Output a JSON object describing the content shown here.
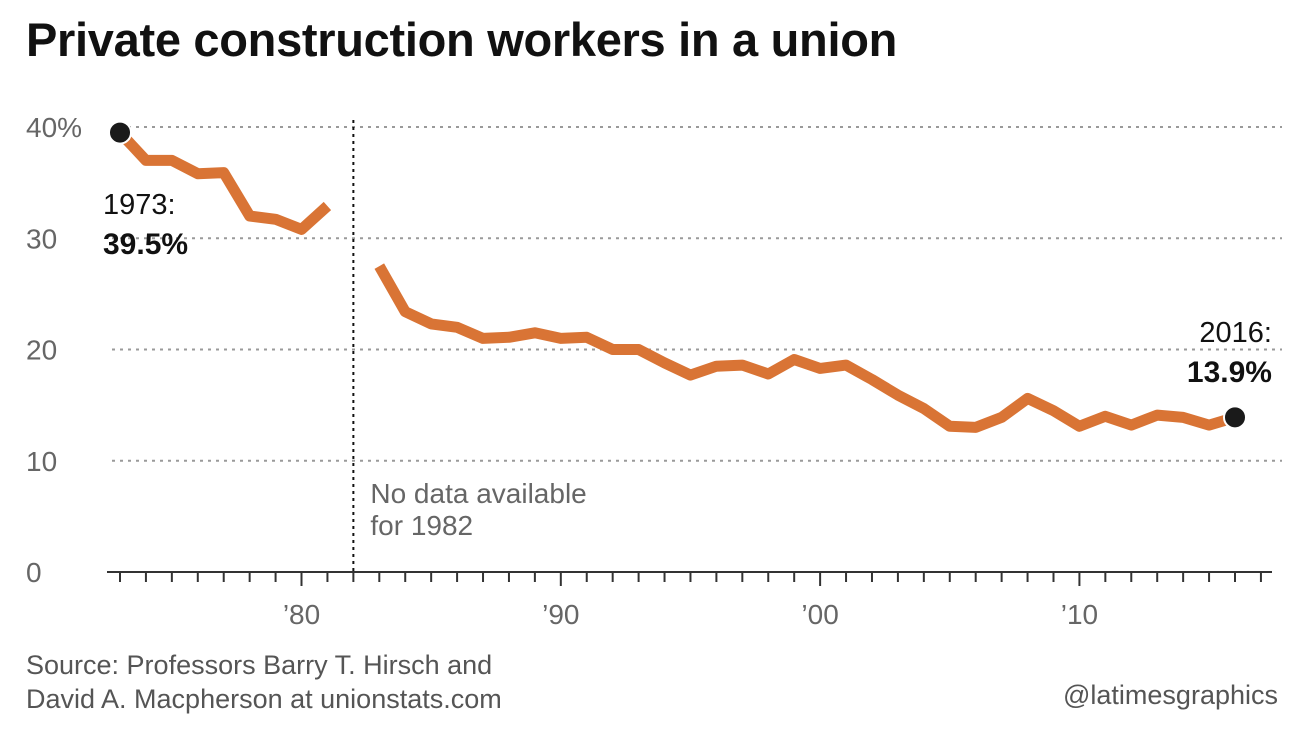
{
  "chart_data": {
    "type": "line",
    "title": "Private construction workers in a union",
    "xlabel": "",
    "ylabel": "",
    "ylim": [
      0,
      40
    ],
    "xlim": [
      1973,
      2017
    ],
    "yticks": [
      {
        "value": 40,
        "label": "40%"
      },
      {
        "value": 30,
        "label": "30"
      },
      {
        "value": 20,
        "label": "20"
      },
      {
        "value": 10,
        "label": "10"
      },
      {
        "value": 0,
        "label": "0"
      }
    ],
    "xticks": [
      {
        "value": 1980,
        "label": "’80"
      },
      {
        "value": 1990,
        "label": "’90"
      },
      {
        "value": 2000,
        "label": "’00"
      },
      {
        "value": 2010,
        "label": "’10"
      }
    ],
    "grid": true,
    "line_color": "#d97435",
    "marker_color": "#1a1a1a",
    "segments": [
      {
        "x": [
          1973,
          1974,
          1975,
          1976,
          1977,
          1978,
          1979,
          1980,
          1981
        ],
        "y": [
          39.5,
          37.0,
          37.0,
          35.8,
          35.9,
          32.0,
          31.7,
          30.8,
          32.9
        ]
      },
      {
        "x": [
          1983,
          1984,
          1985,
          1986,
          1987,
          1988,
          1989,
          1990,
          1991,
          1992,
          1993,
          1994,
          1995,
          1996,
          1997,
          1998,
          1999,
          2000,
          2001,
          2002,
          2003,
          2004,
          2005,
          2006,
          2007,
          2008,
          2009,
          2010,
          2011,
          2012,
          2013,
          2014,
          2015,
          2016
        ],
        "y": [
          27.5,
          23.4,
          22.3,
          22.0,
          21.0,
          21.1,
          21.5,
          21.0,
          21.1,
          20.0,
          20.0,
          18.8,
          17.7,
          18.5,
          18.6,
          17.8,
          19.1,
          18.3,
          18.6,
          17.3,
          15.9,
          14.7,
          13.1,
          13.0,
          13.9,
          15.6,
          14.5,
          13.1,
          14.0,
          13.2,
          14.1,
          13.9,
          13.2,
          13.9
        ]
      }
    ],
    "highlights": [
      {
        "x": 1973,
        "y": 39.5,
        "year_label": "1973:",
        "value_label": "39.5%"
      },
      {
        "x": 2016,
        "y": 13.9,
        "year_label": "2016:",
        "value_label": "13.9%"
      }
    ],
    "missing_year": 1982,
    "missing_note": [
      "No data available",
      "for 1982"
    ]
  },
  "footer": {
    "source_line1": "Source: Professors Barry T. Hirsch and",
    "source_line2": "David A. Macpherson at unionstats.com",
    "credit": "@latimesgraphics"
  }
}
